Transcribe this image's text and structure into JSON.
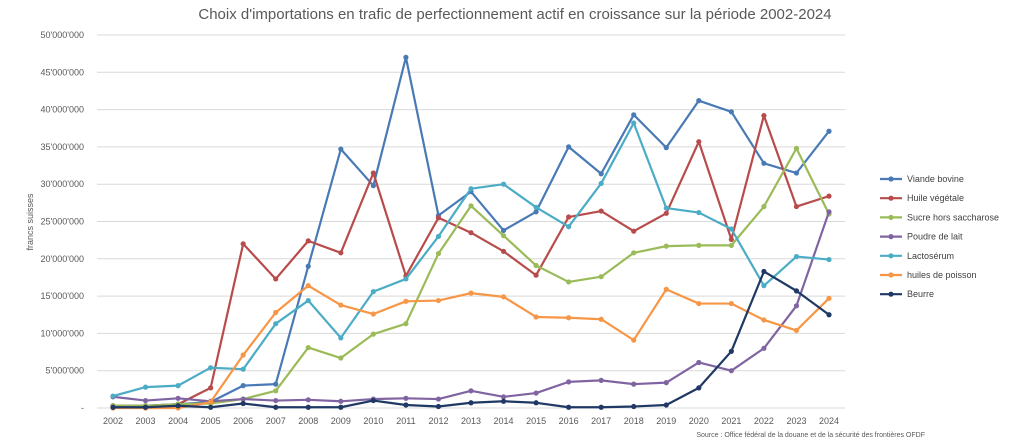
{
  "chart_data": {
    "type": "line",
    "title": "Choix d'importations en trafic de perfectionnement actif en croissance sur la période 2002-2024",
    "xlabel": "",
    "ylabel": "francs suisses",
    "source": "Source : Office fédéral de la douane et de la sécurité des frontières OFDF",
    "ylim": [
      0,
      50000000
    ],
    "yticks": [
      0,
      5000000,
      10000000,
      15000000,
      20000000,
      25000000,
      30000000,
      35000000,
      40000000,
      45000000,
      50000000
    ],
    "ytick_labels": [
      "-",
      "5'000'000",
      "10'000'000",
      "15'000'000",
      "20'000'000",
      "25'000'000",
      "30'000'000",
      "35'000'000",
      "40'000'000",
      "45'000'000",
      "50'000'000"
    ],
    "grid": "horizontal",
    "legend_position": "right",
    "categories": [
      "2002",
      "2003",
      "2004",
      "2005",
      "2006",
      "2007",
      "2008",
      "2009",
      "2010",
      "2011",
      "2012",
      "2013",
      "2014",
      "2015",
      "2016",
      "2017",
      "2018",
      "2019",
      "2020",
      "2021",
      "2022",
      "2023",
      "2024"
    ],
    "series": [
      {
        "name": "Viande bovine",
        "color": "#4a7ab5",
        "values": [
          0.3,
          0.3,
          0.5,
          0.8,
          3.0,
          3.2,
          19.0,
          34.7,
          29.8,
          47.0,
          25.8,
          29.0,
          23.8,
          26.3,
          35.0,
          31.4,
          39.3,
          34.9,
          41.2,
          39.7,
          32.8,
          31.5,
          37.1
        ]
      },
      {
        "name": "Huile végétale",
        "color": "#b84b4b",
        "values": [
          0.3,
          0.3,
          0.5,
          2.7,
          22.0,
          17.3,
          22.4,
          20.8,
          31.5,
          17.7,
          25.5,
          23.5,
          21.0,
          17.8,
          25.6,
          26.4,
          23.7,
          26.1,
          35.7,
          22.6,
          39.2,
          27.0,
          28.4
        ]
      },
      {
        "name": "Sucre hors saccharose",
        "color": "#9bbb59",
        "values": [
          0.3,
          0.3,
          0.5,
          0.6,
          1.2,
          2.3,
          8.1,
          6.7,
          9.9,
          11.3,
          20.7,
          27.1,
          23.1,
          19.1,
          16.9,
          17.6,
          20.8,
          21.7,
          21.8,
          21.8,
          27.0,
          34.8,
          26.0
        ]
      },
      {
        "name": "Poudre de lait",
        "color": "#8064a2",
        "values": [
          1.5,
          1.0,
          1.3,
          0.9,
          1.2,
          1.0,
          1.1,
          0.9,
          1.2,
          1.3,
          1.2,
          2.3,
          1.5,
          2.0,
          3.5,
          3.7,
          3.2,
          3.4,
          6.1,
          5.0,
          8.0,
          13.7,
          26.3
        ]
      },
      {
        "name": "Lactosérum",
        "color": "#4bacc6",
        "values": [
          1.6,
          2.8,
          3.0,
          5.4,
          5.2,
          11.3,
          14.4,
          9.4,
          15.6,
          17.3,
          23.0,
          29.4,
          30.0,
          26.9,
          24.3,
          30.1,
          38.2,
          26.8,
          26.2,
          24.0,
          16.4,
          20.3,
          19.9
        ]
      },
      {
        "name": "huiles de poisson",
        "color": "#f79646",
        "values": [
          0.0,
          0.0,
          0.0,
          0.8,
          7.1,
          12.8,
          16.4,
          13.8,
          12.6,
          14.3,
          14.4,
          15.4,
          14.9,
          12.2,
          12.1,
          11.9,
          9.1,
          15.9,
          14.0,
          14.0,
          11.8,
          10.4,
          14.7
        ]
      },
      {
        "name": "Beurre",
        "color": "#1f3864",
        "values": [
          0.1,
          0.1,
          0.3,
          0.1,
          0.6,
          0.1,
          0.1,
          0.1,
          1.0,
          0.4,
          0.2,
          0.7,
          0.9,
          0.7,
          0.1,
          0.1,
          0.2,
          0.4,
          2.7,
          7.6,
          18.3,
          15.7,
          12.5
        ]
      }
    ],
    "value_unit_multiplier": 1000000
  }
}
